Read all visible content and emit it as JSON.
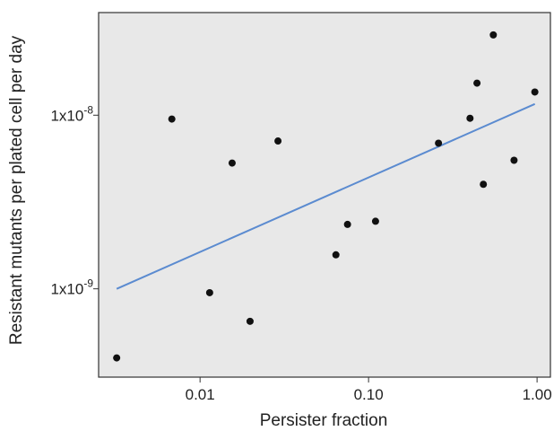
{
  "chart_data": {
    "type": "scatter",
    "xlabel": "Persister fraction",
    "ylabel": "Resistant mutants per plated cell per day",
    "x_scale": "log",
    "y_scale": "log",
    "xlim": [
      0.0025,
      1.2
    ],
    "ylim": [
      3.1e-10,
      3.9e-08
    ],
    "x_ticks": [
      {
        "value": 0.01,
        "label": "0.01"
      },
      {
        "value": 0.1,
        "label": "0.10"
      },
      {
        "value": 1,
        "label": "1.00"
      }
    ],
    "y_ticks": [
      {
        "value": 1e-09,
        "base": "1x10",
        "exp": "-9"
      },
      {
        "value": 1e-08,
        "base": "1x10",
        "exp": "-8"
      }
    ],
    "grid": false,
    "legend": "none",
    "series": [
      {
        "points": [
          {
            "x": 0.0032,
            "y": 4e-10
          },
          {
            "x": 0.0068,
            "y": 9.5e-09
          },
          {
            "x": 0.0114,
            "y": 9.5e-10
          },
          {
            "x": 0.0155,
            "y": 5.3e-09
          },
          {
            "x": 0.0198,
            "y": 6.5e-10
          },
          {
            "x": 0.029,
            "y": 7.1e-09
          },
          {
            "x": 0.064,
            "y": 1.57e-09
          },
          {
            "x": 0.075,
            "y": 2.35e-09
          },
          {
            "x": 0.11,
            "y": 2.45e-09
          },
          {
            "x": 0.26,
            "y": 6.9e-09
          },
          {
            "x": 0.4,
            "y": 9.6e-09
          },
          {
            "x": 0.44,
            "y": 1.53e-08
          },
          {
            "x": 0.48,
            "y": 4e-09
          },
          {
            "x": 0.55,
            "y": 2.9e-08
          },
          {
            "x": 0.73,
            "y": 5.5e-09
          },
          {
            "x": 0.97,
            "y": 1.36e-08
          }
        ]
      }
    ],
    "trendline": {
      "x": [
        0.0032,
        0.97
      ],
      "y": [
        1e-09,
        1.16e-08
      ]
    },
    "colors": {
      "plot_background": "#e8e8e8",
      "axis": "#333333",
      "points": "#111111",
      "trendline": "#5b8bd0"
    }
  }
}
